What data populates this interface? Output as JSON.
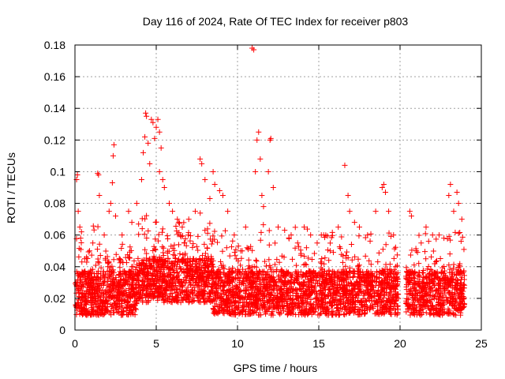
{
  "chart_data": {
    "type": "scatter",
    "title": "Day 116 of 2024, Rate Of TEC Index for receiver p803",
    "xlabel": "GPS time / hours",
    "ylabel": "ROTI / TECUs",
    "xlim": [
      0,
      25
    ],
    "ylim": [
      0,
      0.18
    ],
    "grid": true,
    "marker": "+",
    "color": "#ff0000",
    "x_ticks": [
      0,
      5,
      10,
      15,
      20,
      25
    ],
    "x_tick_labels": [
      "0",
      "5",
      "10",
      "15",
      "20",
      "25"
    ],
    "y_ticks": [
      0,
      0.02,
      0.04,
      0.06,
      0.08,
      0.1,
      0.12,
      0.14,
      0.16,
      0.18
    ],
    "y_tick_labels": [
      "0",
      "0.02",
      "0.04",
      "0.06",
      "0.08",
      "0.1",
      "0.12",
      "0.14",
      "0.16",
      "0.18"
    ],
    "data_gap_hours": [
      19.9,
      20.35
    ],
    "series": [
      {
        "name": "ROTI",
        "points": [
          [
            0.1,
            0.095
          ],
          [
            0.15,
            0.098
          ],
          [
            0.2,
            0.075
          ],
          [
            0.3,
            0.065
          ],
          [
            0.35,
            0.058
          ],
          [
            0.4,
            0.062
          ],
          [
            0.6,
            0.045
          ],
          [
            0.9,
            0.05
          ],
          [
            1.1,
            0.055
          ],
          [
            1.5,
            0.085
          ],
          [
            1.4,
            0.099
          ],
          [
            1.45,
            0.098
          ],
          [
            1.8,
            0.06
          ],
          [
            2.1,
            0.075
          ],
          [
            2.2,
            0.08
          ],
          [
            2.3,
            0.093
          ],
          [
            2.35,
            0.11
          ],
          [
            2.4,
            0.117
          ],
          [
            2.5,
            0.072
          ],
          [
            2.9,
            0.06
          ],
          [
            3.3,
            0.075
          ],
          [
            3.5,
            0.068
          ],
          [
            3.8,
            0.08
          ],
          [
            4.1,
            0.095
          ],
          [
            4.2,
            0.112
          ],
          [
            4.3,
            0.122
          ],
          [
            4.35,
            0.137
          ],
          [
            4.4,
            0.135
          ],
          [
            4.5,
            0.118
          ],
          [
            4.6,
            0.105
          ],
          [
            4.7,
            0.133
          ],
          [
            4.8,
            0.131
          ],
          [
            4.9,
            0.121
          ],
          [
            5.0,
            0.128
          ],
          [
            5.1,
            0.133
          ],
          [
            5.2,
            0.125
          ],
          [
            5.3,
            0.115
          ],
          [
            5.2,
            0.1
          ],
          [
            5.4,
            0.095
          ],
          [
            5.5,
            0.09
          ],
          [
            5.8,
            0.08
          ],
          [
            6.0,
            0.075
          ],
          [
            6.3,
            0.07
          ],
          [
            6.6,
            0.065
          ],
          [
            7.0,
            0.07
          ],
          [
            7.4,
            0.075
          ],
          [
            7.7,
            0.108
          ],
          [
            7.8,
            0.105
          ],
          [
            8.0,
            0.095
          ],
          [
            8.3,
            0.083
          ],
          [
            8.5,
            0.1
          ],
          [
            8.6,
            0.092
          ],
          [
            8.9,
            0.088
          ],
          [
            9.1,
            0.085
          ],
          [
            9.4,
            0.075
          ],
          [
            9.8,
            0.06
          ],
          [
            10.2,
            0.05
          ],
          [
            10.5,
            0.065
          ],
          [
            10.9,
            0.178
          ],
          [
            11.0,
            0.177
          ],
          [
            11.1,
            0.1
          ],
          [
            11.2,
            0.12
          ],
          [
            11.3,
            0.125
          ],
          [
            11.4,
            0.108
          ],
          [
            11.5,
            0.085
          ],
          [
            11.6,
            0.078
          ],
          [
            11.9,
            0.1
          ],
          [
            12.0,
            0.12
          ],
          [
            12.05,
            0.121
          ],
          [
            12.2,
            0.09
          ],
          [
            12.5,
            0.065
          ],
          [
            12.9,
            0.063
          ],
          [
            13.3,
            0.06
          ],
          [
            13.7,
            0.055
          ],
          [
            14.1,
            0.065
          ],
          [
            14.5,
            0.06
          ],
          [
            14.9,
            0.055
          ],
          [
            15.3,
            0.06
          ],
          [
            15.7,
            0.05
          ],
          [
            16.2,
            0.065
          ],
          [
            16.6,
            0.104
          ],
          [
            16.8,
            0.085
          ],
          [
            16.9,
            0.075
          ],
          [
            17.2,
            0.068
          ],
          [
            17.5,
            0.065
          ],
          [
            18.0,
            0.06
          ],
          [
            18.5,
            0.075
          ],
          [
            18.9,
            0.09
          ],
          [
            19.0,
            0.092
          ],
          [
            19.1,
            0.087
          ],
          [
            19.3,
            0.075
          ],
          [
            19.6,
            0.06
          ],
          [
            20.6,
            0.075
          ],
          [
            20.7,
            0.072
          ],
          [
            21.0,
            0.05
          ],
          [
            21.3,
            0.055
          ],
          [
            21.6,
            0.065
          ],
          [
            22.0,
            0.06
          ],
          [
            22.4,
            0.06
          ],
          [
            22.7,
            0.058
          ],
          [
            23.0,
            0.085
          ],
          [
            23.1,
            0.092
          ],
          [
            23.3,
            0.075
          ],
          [
            23.5,
            0.087
          ],
          [
            23.6,
            0.08
          ],
          [
            23.8,
            0.07
          ]
        ]
      }
    ]
  }
}
